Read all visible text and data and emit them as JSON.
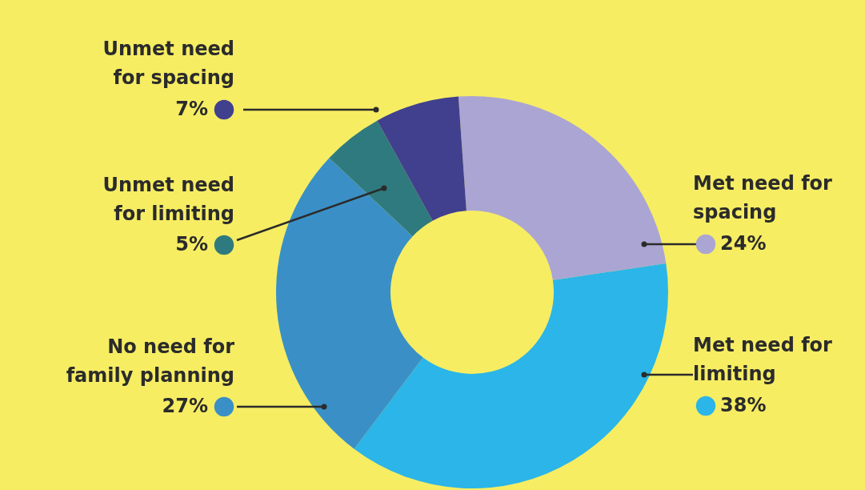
{
  "chart_data": {
    "type": "donut",
    "categories": [
      "Met need for spacing",
      "Met need for limiting",
      "No need for family planning",
      "Unmet need for limiting",
      "Unmet need for spacing"
    ],
    "values": [
      24,
      38,
      27,
      5,
      7
    ],
    "value_labels": [
      "24%",
      "38%",
      "27%",
      "5%",
      "7%"
    ],
    "colors": [
      "#aba5d3",
      "#2bb5e8",
      "#3a90c6",
      "#2f7a7e",
      "#41408e"
    ]
  }
}
